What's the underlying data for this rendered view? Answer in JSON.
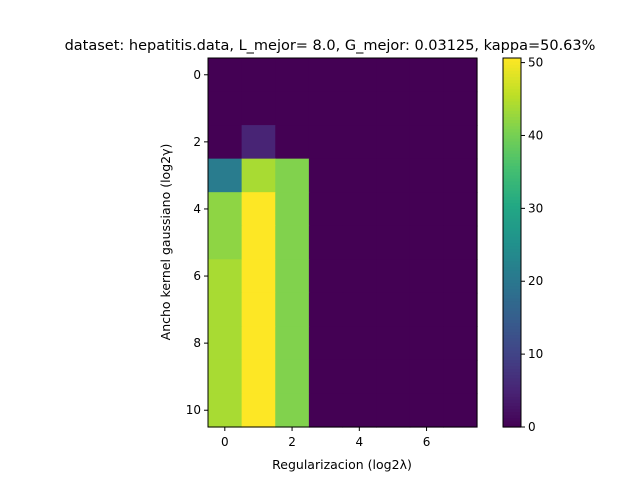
{
  "chart_data": {
    "type": "heatmap",
    "title": "dataset: hepatitis.data, L_mejor= 8.0, G_mejor: 0.03125, kappa=50.63%",
    "xlabel": "Regularizacion  (log2λ)",
    "ylabel": "Ancho kernel gaussiano (log2γ)",
    "x_values": [
      0,
      1,
      2,
      3,
      4,
      5,
      6,
      7
    ],
    "y_values": [
      0,
      1,
      2,
      3,
      4,
      5,
      6,
      7,
      8,
      9,
      10
    ],
    "x_ticks": [
      0,
      2,
      4,
      6
    ],
    "y_ticks": [
      0,
      2,
      4,
      6,
      8,
      10
    ],
    "z": [
      [
        0,
        0,
        0,
        0,
        0,
        0,
        0,
        0
      ],
      [
        0,
        0,
        0,
        0,
        0,
        0,
        0,
        0
      ],
      [
        0,
        5,
        0,
        0,
        0,
        0,
        0,
        0
      ],
      [
        21,
        44,
        41,
        0,
        0,
        0,
        0,
        0
      ],
      [
        42,
        50.63,
        41,
        0,
        0,
        0,
        0,
        0
      ],
      [
        42,
        50.63,
        41,
        0,
        0,
        0,
        0,
        0
      ],
      [
        44,
        50.63,
        41,
        0,
        0,
        0,
        0,
        0
      ],
      [
        44,
        50.63,
        41,
        0,
        0,
        0,
        0,
        0
      ],
      [
        44,
        50.63,
        41,
        0,
        0,
        0,
        0,
        0
      ],
      [
        44,
        50.63,
        41,
        0,
        0,
        0,
        0,
        0
      ],
      [
        44,
        50.63,
        41,
        0,
        0,
        0,
        0,
        0
      ]
    ],
    "colormap": "viridis",
    "zlim": [
      0,
      50.63
    ],
    "colorbar_ticks": [
      0,
      10,
      20,
      30,
      40,
      50
    ],
    "grid": false,
    "legend": "none"
  }
}
